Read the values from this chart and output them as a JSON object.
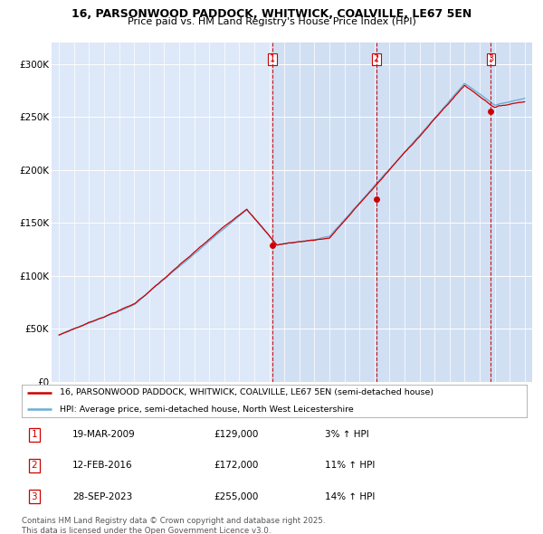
{
  "title": "16, PARSONWOOD PADDOCK, WHITWICK, COALVILLE, LE67 5EN",
  "subtitle": "Price paid vs. HM Land Registry's House Price Index (HPI)",
  "legend_line1": "16, PARSONWOOD PADDOCK, WHITWICK, COALVILLE, LE67 5EN (semi-detached house)",
  "legend_line2": "HPI: Average price, semi-detached house, North West Leicestershire",
  "sales": [
    {
      "num": 1,
      "date": "19-MAR-2009",
      "price": 129000,
      "pct": "3%",
      "dir": "↑"
    },
    {
      "num": 2,
      "date": "12-FEB-2016",
      "price": 172000,
      "pct": "11%",
      "dir": "↑"
    },
    {
      "num": 3,
      "date": "28-SEP-2023",
      "price": 255000,
      "pct": "14%",
      "dir": "↑"
    }
  ],
  "sale_dates_decimal": [
    2009.21,
    2016.12,
    2023.75
  ],
  "sale_prices": [
    129000,
    172000,
    255000
  ],
  "ylim": [
    0,
    320000
  ],
  "yticks": [
    0,
    50000,
    100000,
    150000,
    200000,
    250000,
    300000
  ],
  "xlim_start": 1994.5,
  "xlim_end": 2026.5,
  "hpi_color": "#6baed6",
  "price_color": "#cc0000",
  "vline_color": "#cc0000",
  "background_color": "#dde8f8",
  "shade_color": "#c8d8f0",
  "footer": "Contains HM Land Registry data © Crown copyright and database right 2025.\nThis data is licensed under the Open Government Licence v3.0."
}
